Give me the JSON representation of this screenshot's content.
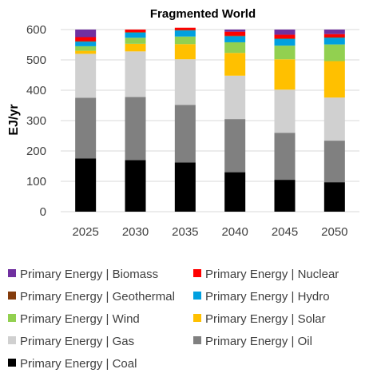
{
  "chart_data": {
    "type": "bar",
    "stacked": true,
    "title": "Fragmented World",
    "xlabel": "",
    "ylabel": "EJ/yr",
    "ylim": [
      0,
      600
    ],
    "yticks": [
      0,
      100,
      200,
      300,
      400,
      500,
      600
    ],
    "grid": true,
    "legend_position": "bottom",
    "categories": [
      "2025",
      "2030",
      "2035",
      "2040",
      "2045",
      "2050"
    ],
    "series": [
      {
        "name": "Primary Energy | Coal",
        "color": "#000000",
        "values": [
          175,
          170,
          162,
          130,
          105,
          97
        ]
      },
      {
        "name": "Primary Energy | Oil",
        "color": "#808080",
        "values": [
          200,
          208,
          190,
          175,
          155,
          137
        ]
      },
      {
        "name": "Primary Energy | Gas",
        "color": "#d0d0d0",
        "values": [
          145,
          150,
          150,
          143,
          142,
          142
        ]
      },
      {
        "name": "Primary Energy | Solar",
        "color": "#ffc000",
        "values": [
          10,
          25,
          50,
          75,
          100,
          120
        ]
      },
      {
        "name": "Primary Energy | Wind",
        "color": "#92d050",
        "values": [
          15,
          20,
          25,
          35,
          45,
          55
        ]
      },
      {
        "name": "Primary Energy | Hydro",
        "color": "#00a0e0",
        "values": [
          15,
          17,
          20,
          20,
          22,
          22
        ]
      },
      {
        "name": "Primary Energy | Geothermal",
        "color": "#843c0c",
        "values": [
          2,
          2,
          2,
          2,
          2,
          2
        ]
      },
      {
        "name": "Primary Energy | Nuclear",
        "color": "#ff0000",
        "values": [
          13,
          8,
          7,
          13,
          12,
          10
        ]
      },
      {
        "name": "Primary Energy | Biomass",
        "color": "#7030a0",
        "values": [
          25,
          0,
          0,
          7,
          17,
          15
        ]
      }
    ],
    "legend": [
      "Primary Energy | Biomass",
      "Primary Energy | Nuclear",
      "Primary Energy | Geothermal",
      "Primary Energy | Hydro",
      "Primary Energy | Wind",
      "Primary Energy | Solar",
      "Primary Energy | Gas",
      "Primary Energy | Oil",
      "Primary Energy | Coal"
    ]
  }
}
